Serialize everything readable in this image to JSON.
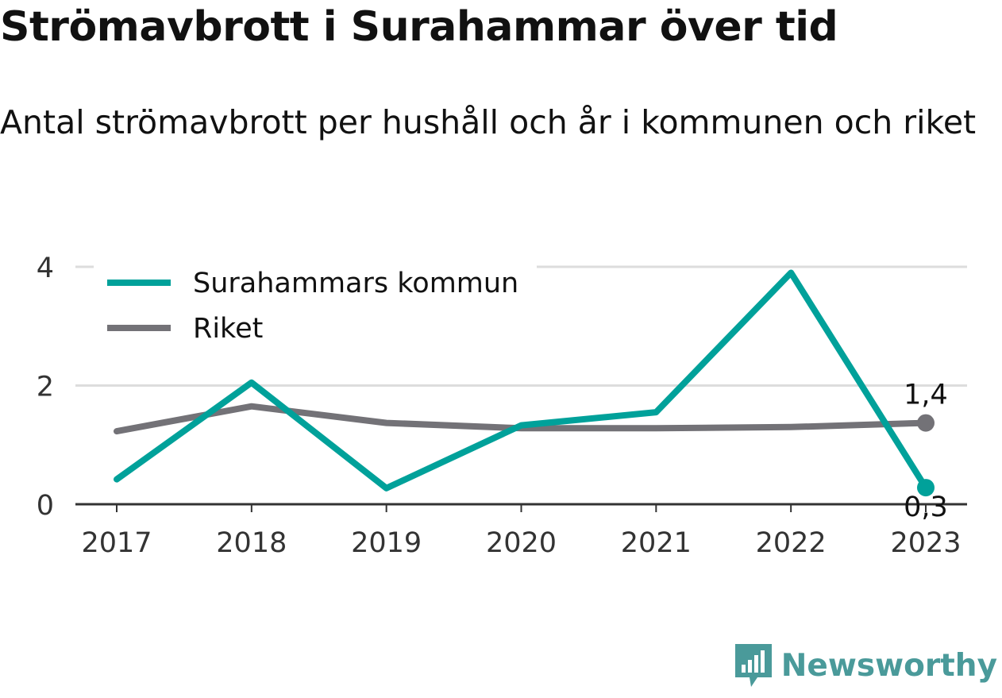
{
  "header": {
    "title": "Strömavbrott i Surahammar över tid",
    "subtitle": "Antal strömavbrott per hushåll och år i kommunen och riket"
  },
  "brand": {
    "name": "Newsworthy",
    "icon": "newsworthy-logo-icon",
    "color": "#4a9a9a"
  },
  "chart_data": {
    "type": "line",
    "title": "Strömavbrott i Surahammar över tid",
    "subtitle": "Antal strömavbrott per hushåll och år i kommunen och riket",
    "xlabel": "",
    "ylabel": "",
    "x": [
      "2017",
      "2018",
      "2019",
      "2020",
      "2021",
      "2022",
      "2023"
    ],
    "ylim": [
      0,
      4
    ],
    "yticks": [
      "0",
      "2",
      "4"
    ],
    "grid": true,
    "legend": "top-left",
    "series": [
      {
        "name": "Surahammars kommun",
        "color": "#00a19a",
        "values": [
          0.42,
          2.05,
          0.27,
          1.33,
          1.55,
          3.9,
          0.28
        ],
        "end_label": "0,3"
      },
      {
        "name": "Riket",
        "color": "#737277",
        "values": [
          1.23,
          1.65,
          1.37,
          1.28,
          1.28,
          1.3,
          1.37
        ],
        "end_label": "1,4"
      }
    ]
  }
}
